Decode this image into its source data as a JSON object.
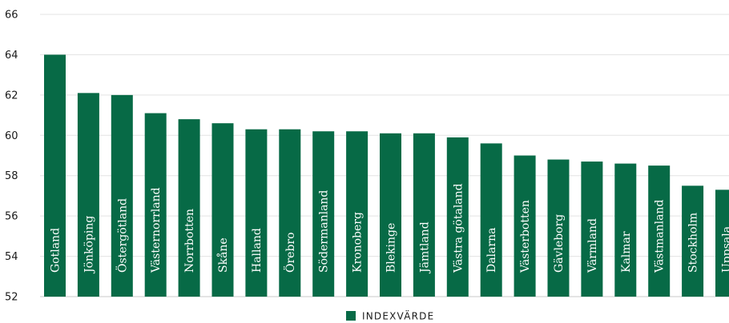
{
  "chart_data": {
    "type": "bar",
    "categories": [
      "Gotland",
      "Jönköping",
      "Östergötland",
      "Västernorrland",
      "Norrbotten",
      "Skåne",
      "Halland",
      "Örebro",
      "Södermanland",
      "Kronoberg",
      "Blekinge",
      "Jämtland",
      "Västra götaland",
      "Dalarna",
      "Västerbotten",
      "Gävleborg",
      "Värmland",
      "Kalmar",
      "Västmanland",
      "Stockholm",
      "Uppsala"
    ],
    "series": [
      {
        "name": "INDEXVÄRDE",
        "values": [
          64.0,
          62.1,
          62.0,
          61.1,
          60.8,
          60.6,
          60.3,
          60.3,
          60.2,
          60.2,
          60.1,
          60.1,
          59.9,
          59.6,
          59.0,
          58.8,
          58.7,
          58.6,
          58.5,
          57.5,
          57.3
        ]
      }
    ],
    "yticks": [
      "52",
      "54",
      "56",
      "58",
      "60",
      "62",
      "64",
      "66"
    ],
    "ylim": [
      52,
      66
    ],
    "grid": true,
    "legend_position": "bottom-center",
    "colors": {
      "bar": "#076a46",
      "grid": "#e3e3e3",
      "axis": "#c8c8c8"
    }
  }
}
